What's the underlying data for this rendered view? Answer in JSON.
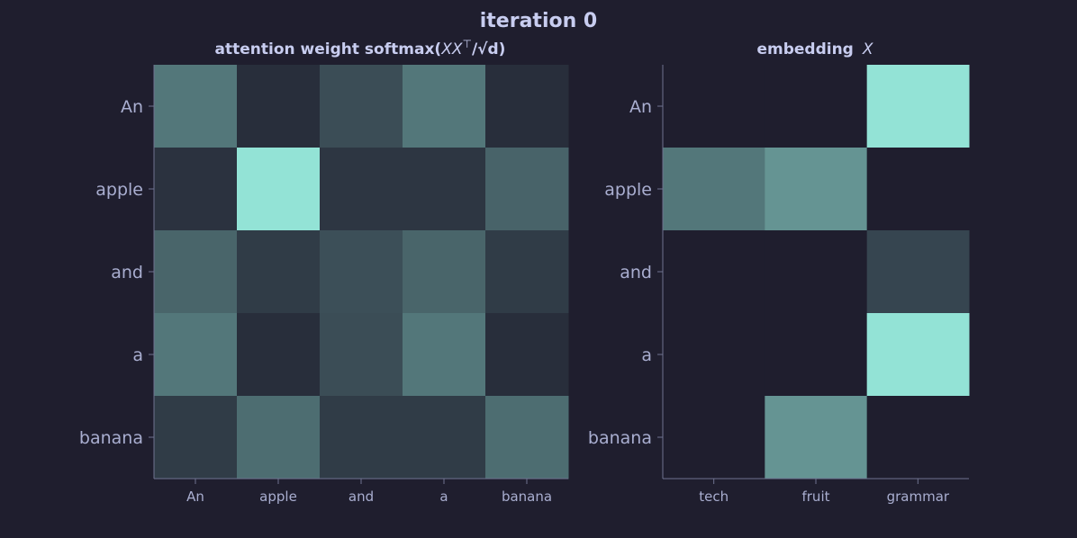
{
  "figure": {
    "suptitle": "iteration 0",
    "background": "#1f1e2e",
    "cell_color": "#93e3d6",
    "empty_color": "#1f1e2e"
  },
  "chart_data": [
    {
      "type": "heatmap",
      "title_text": "attention weight  softmax(",
      "title_math": "XX",
      "title_sup": "⊤",
      "title_tail": "/√d)",
      "rows": [
        "An",
        "apple",
        "and",
        "a",
        "banana"
      ],
      "cols": [
        "An",
        "apple",
        "and",
        "a",
        "banana"
      ],
      "values": [
        [
          0.45,
          0.08,
          0.24,
          0.45,
          0.08
        ],
        [
          0.1,
          1.0,
          0.12,
          0.12,
          0.35
        ],
        [
          0.36,
          0.15,
          0.25,
          0.36,
          0.15
        ],
        [
          0.45,
          0.08,
          0.24,
          0.45,
          0.08
        ],
        [
          0.15,
          0.4,
          0.15,
          0.15,
          0.4
        ]
      ],
      "vmin": 0.0,
      "vmax": 1.0
    },
    {
      "type": "heatmap",
      "title_text": "embedding",
      "title_math": "X",
      "rows": [
        "An",
        "apple",
        "and",
        "a",
        "banana"
      ],
      "cols": [
        "tech",
        "fruit",
        "grammar"
      ],
      "values": [
        [
          0.0,
          0.0,
          1.0
        ],
        [
          0.45,
          0.6,
          0.0
        ],
        [
          0.0,
          0.0,
          0.2
        ],
        [
          0.0,
          0.0,
          1.0
        ],
        [
          0.0,
          0.6,
          0.0
        ]
      ],
      "vmin": 0.0,
      "vmax": 1.0
    }
  ]
}
